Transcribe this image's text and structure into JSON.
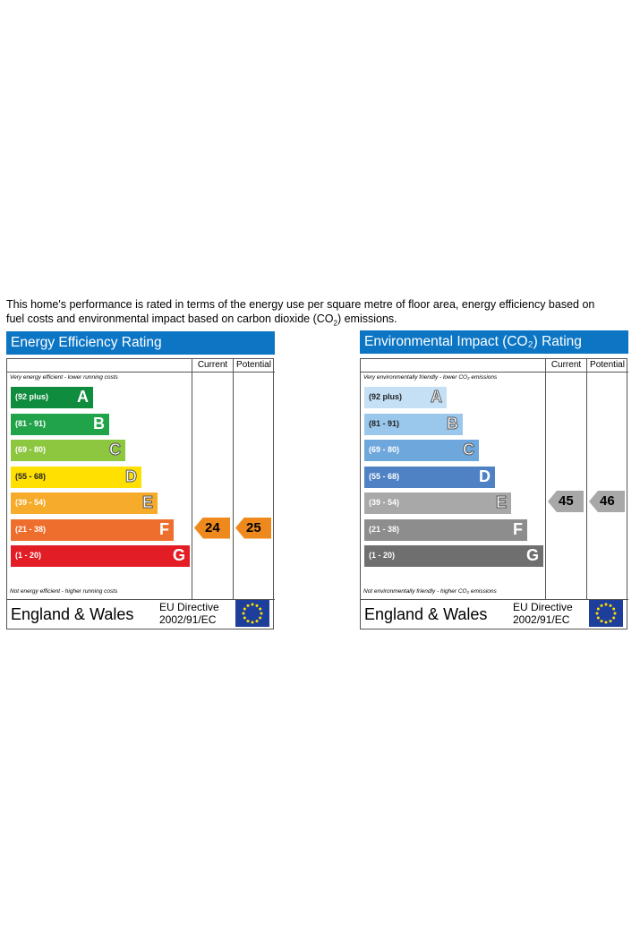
{
  "intro_line1": "This home's performance is rated in terms of the energy use per square metre of floor area, energy efficiency based on",
  "intro_line2a": "fuel costs and environmental impact based on carbon dioxide (CO",
  "intro_sub": "2",
  "intro_line2b": ") emissions.",
  "chart_data": [
    {
      "type": "bar",
      "title": "Energy Efficiency Rating",
      "columns": [
        "Current",
        "Potential"
      ],
      "top_note": "Very energy efficient - lower running costs",
      "bottom_note": "Not energy efficient - higher running costs",
      "bands": [
        {
          "range": "(92 plus)",
          "letter": "A",
          "color": "#0f8c3d"
        },
        {
          "range": "(81 - 91)",
          "letter": "B",
          "color": "#21a34a"
        },
        {
          "range": "(69 - 80)",
          "letter": "C",
          "color": "#8dc63f"
        },
        {
          "range": "(55 - 68)",
          "letter": "D",
          "color": "#ffe000"
        },
        {
          "range": "(39 - 54)",
          "letter": "E",
          "color": "#f6ab2a"
        },
        {
          "range": "(21 - 38)",
          "letter": "F",
          "color": "#ee6f2d"
        },
        {
          "range": "(1 - 20)",
          "letter": "G",
          "color": "#e31d25"
        }
      ],
      "current": 24,
      "potential": 25,
      "current_color": "#ee8a1d",
      "potential_color": "#ee8a1d",
      "footer_country": "England & Wales",
      "footer_directive_1": "EU Directive",
      "footer_directive_2": "2002/91/EC"
    },
    {
      "type": "bar",
      "title": "Environmental Impact (CO₂) Rating",
      "columns": [
        "Current",
        "Potential"
      ],
      "top_note": "Very environmentally friendly - lower CO₂ emissions",
      "bottom_note": "Not environmentally friendly - higher CO₂ emissions",
      "bands": [
        {
          "range": "(92 plus)",
          "letter": "A",
          "color": "#c5e0f5"
        },
        {
          "range": "(81 - 91)",
          "letter": "B",
          "color": "#9ac7ec"
        },
        {
          "range": "(69 - 80)",
          "letter": "C",
          "color": "#6ea7dc"
        },
        {
          "range": "(55 - 68)",
          "letter": "D",
          "color": "#4e82c4"
        },
        {
          "range": "(39 - 54)",
          "letter": "E",
          "color": "#a8a8a8"
        },
        {
          "range": "(21 - 38)",
          "letter": "F",
          "color": "#8d8d8d"
        },
        {
          "range": "(1 - 20)",
          "letter": "G",
          "color": "#6f6f6f"
        }
      ],
      "current": 45,
      "potential": 46,
      "current_color": "#a8a8a8",
      "potential_color": "#a8a8a8",
      "footer_country": "England & Wales",
      "footer_directive_1": "EU Directive",
      "footer_directive_2": "2002/91/EC"
    }
  ]
}
